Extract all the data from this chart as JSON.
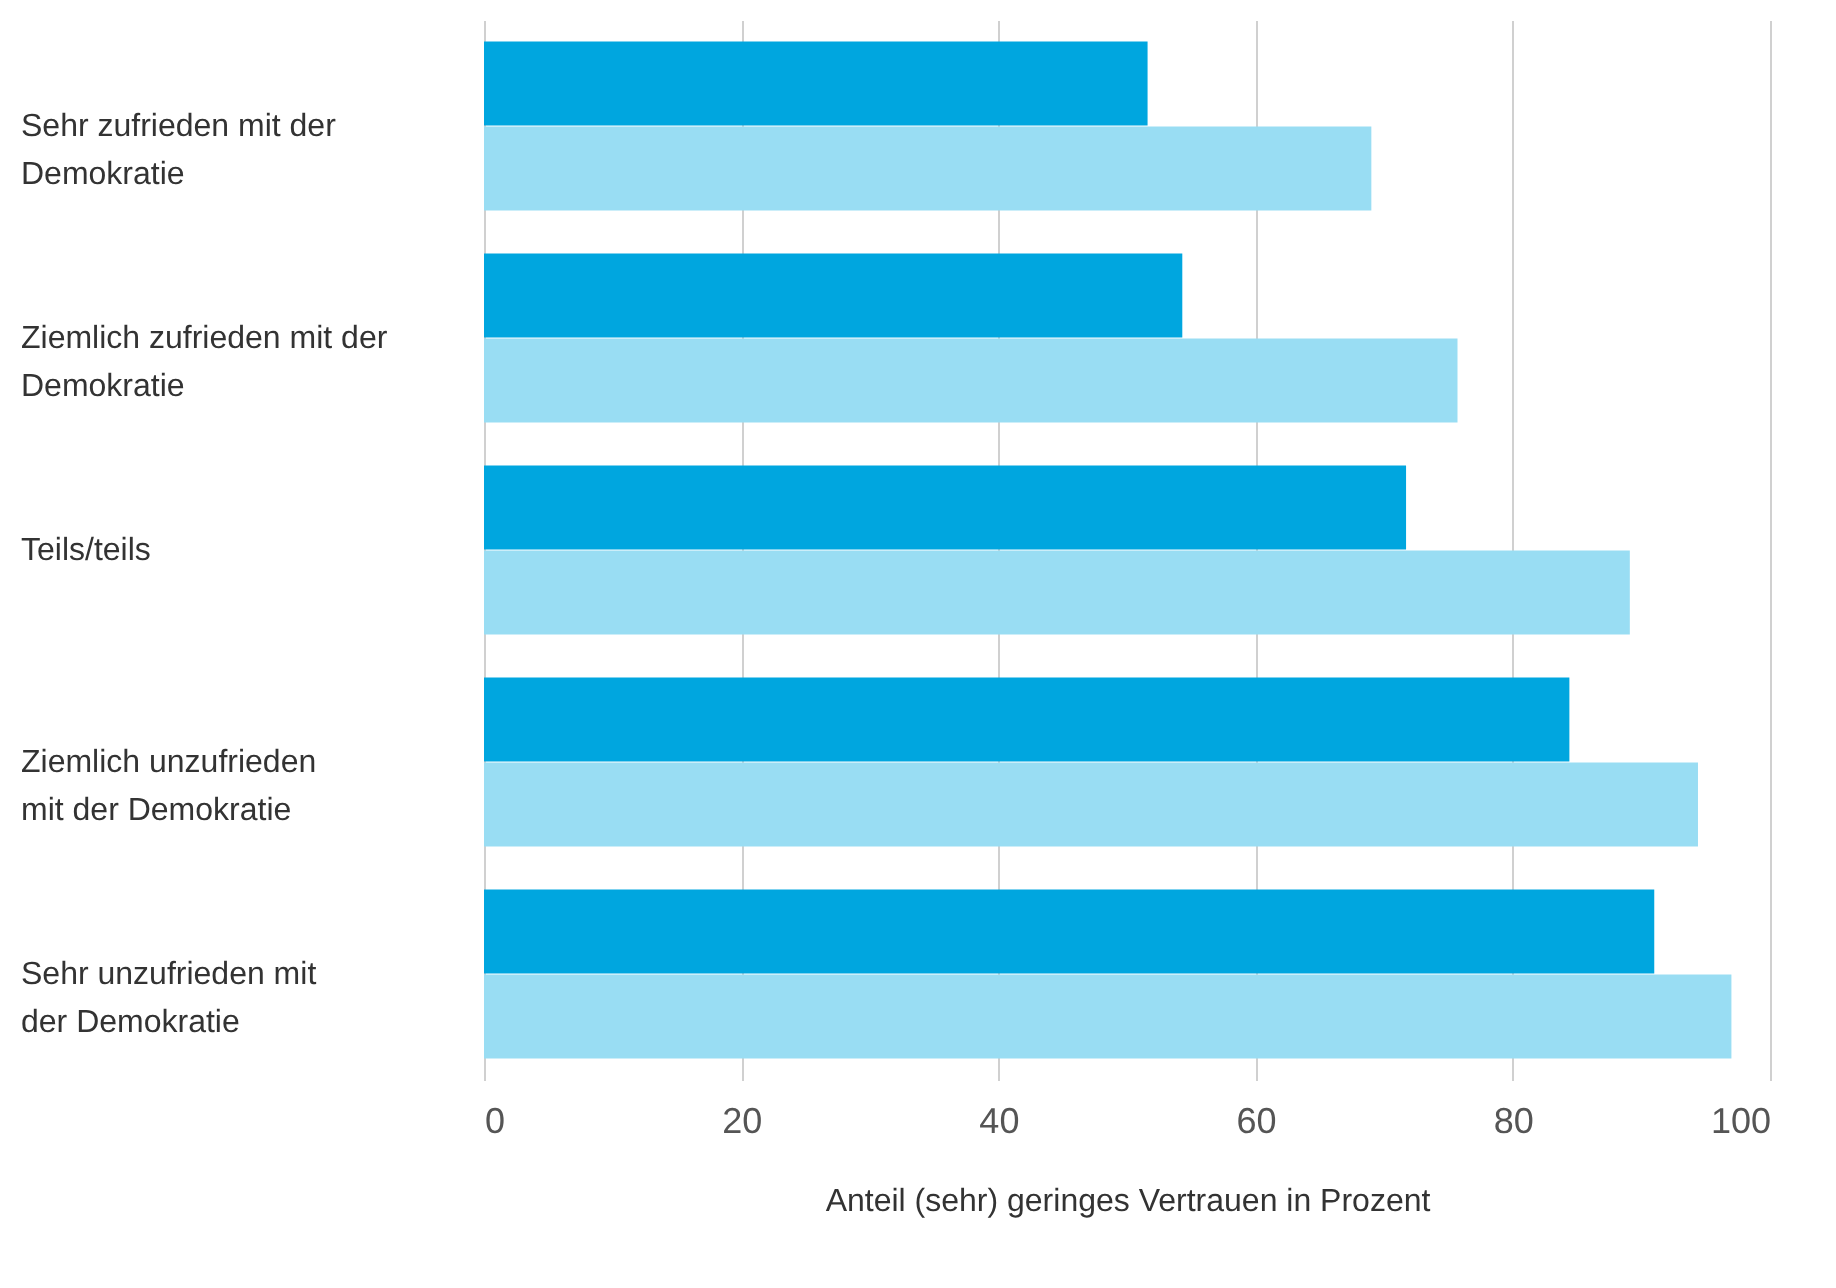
{
  "chart_data": {
    "type": "bar",
    "orientation": "horizontal",
    "xlabel": "Anteil (sehr) geringes Vertrauen in Prozent",
    "categories": [
      "Sehr zufrieden mit der\nDemokratie",
      "Ziemlich zufrieden mit der\nDemokratie",
      "Teils/teils",
      "Ziemlich unzufrieden\nmit der Demokratie",
      "Sehr unzufrieden mit\nder Demokratie"
    ],
    "series": [
      {
        "color": "#00a6df",
        "values": [
          51.6,
          54.3,
          71.7,
          84.4,
          91.0
        ]
      },
      {
        "color": "#99ddf3",
        "values": [
          69.0,
          75.7,
          89.1,
          94.4,
          97.0
        ]
      }
    ],
    "xlim": [
      0,
      100
    ],
    "xticks": [
      0,
      20,
      40,
      60,
      80,
      100
    ],
    "grid": "x"
  }
}
